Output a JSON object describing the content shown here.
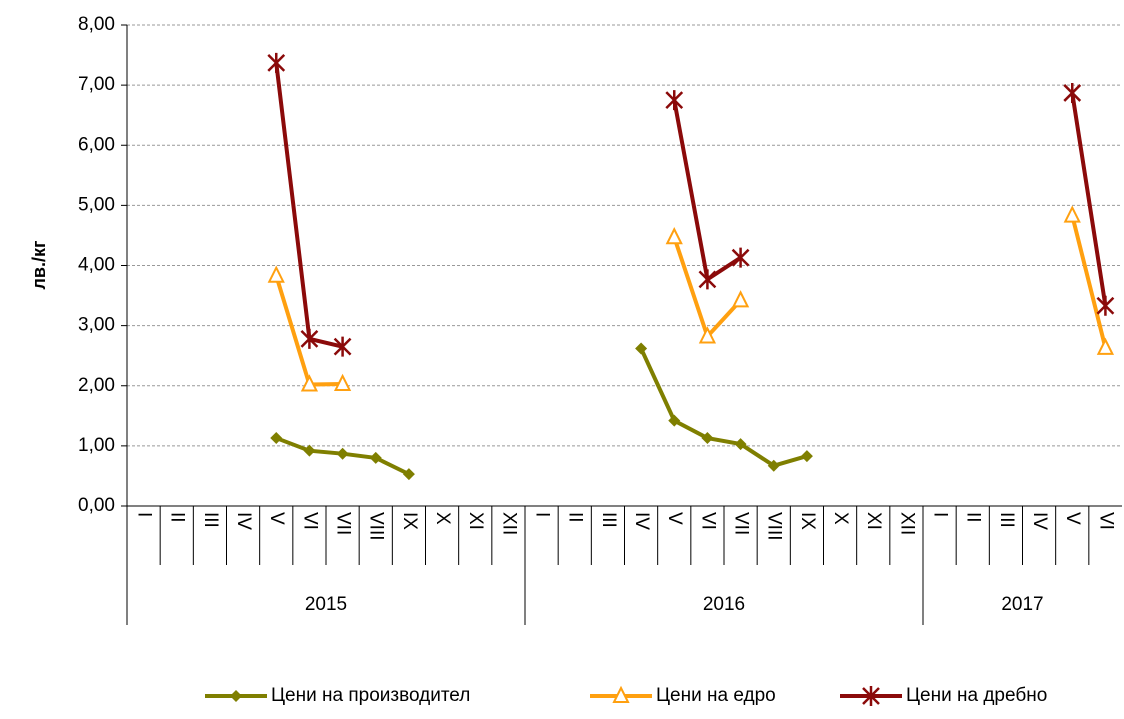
{
  "chart_data": {
    "type": "line",
    "y_label": "лв./кг",
    "categories": [
      "I",
      "II",
      "III",
      "IV",
      "V",
      "VI",
      "VII",
      "VIII",
      "IX",
      "X",
      "XI",
      "XII",
      "I",
      "II",
      "III",
      "IV",
      "V",
      "VI",
      "VII",
      "VIII",
      "IX",
      "X",
      "XI",
      "XII",
      "I",
      "II",
      "III",
      "IV",
      "V",
      "VI"
    ],
    "groups": [
      {
        "label": "2015",
        "size": 12
      },
      {
        "label": "2016",
        "size": 12
      },
      {
        "label": "2017",
        "size": 6
      }
    ],
    "series": [
      {
        "name": "Цени на производител",
        "color": "#7f7f00",
        "marker": "diamond",
        "values": [
          null,
          null,
          null,
          null,
          1.13,
          0.92,
          0.87,
          0.8,
          0.53,
          null,
          null,
          null,
          null,
          null,
          null,
          2.62,
          1.42,
          1.13,
          1.03,
          0.67,
          0.83,
          null,
          null,
          null,
          null,
          null,
          null,
          null,
          null,
          null
        ]
      },
      {
        "name": "Цени на едро",
        "color": "#ffa010",
        "marker": "triangle",
        "values": [
          null,
          null,
          null,
          null,
          3.83,
          2.02,
          2.03,
          null,
          null,
          null,
          null,
          null,
          null,
          null,
          null,
          null,
          4.47,
          2.82,
          3.42,
          null,
          null,
          null,
          null,
          null,
          null,
          null,
          null,
          null,
          4.83,
          2.63
        ]
      },
      {
        "name": "Цени на дребно",
        "color": "#8b0a0a",
        "marker": "asterisk",
        "values": [
          null,
          null,
          null,
          null,
          7.37,
          2.78,
          2.65,
          null,
          null,
          null,
          null,
          null,
          null,
          null,
          null,
          null,
          6.75,
          3.77,
          4.13,
          null,
          null,
          null,
          null,
          null,
          null,
          null,
          null,
          null,
          6.87,
          3.33
        ]
      }
    ],
    "ylim": [
      0,
      8
    ],
    "yticks": [
      {
        "value": 0,
        "label": "0,00"
      },
      {
        "value": 1,
        "label": "1,00"
      },
      {
        "value": 2,
        "label": "2,00"
      },
      {
        "value": 3,
        "label": "3,00"
      },
      {
        "value": 4,
        "label": "4,00"
      },
      {
        "value": 5,
        "label": "5,00"
      },
      {
        "value": 6,
        "label": "6,00"
      },
      {
        "value": 7,
        "label": "7,00"
      },
      {
        "value": 8,
        "label": "8,00"
      }
    ],
    "grid": true,
    "legend": "bottom"
  }
}
